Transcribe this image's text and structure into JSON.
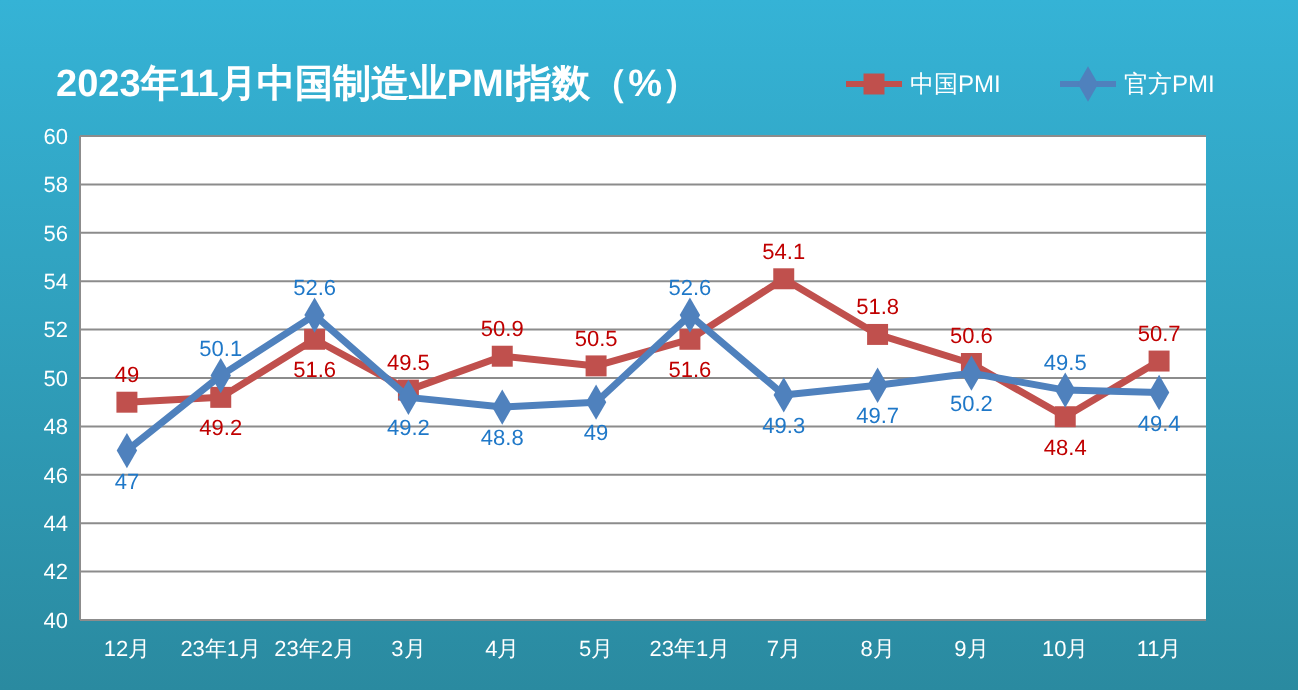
{
  "chart_data": {
    "type": "line",
    "title": "2023年11月中国制造业PMI指数（%）",
    "categories": [
      "12月",
      "23年1月",
      "23年2月",
      "3月",
      "4月",
      "5月",
      "23年1月",
      "7月",
      "8月",
      "9月",
      "10月",
      "11月"
    ],
    "series": [
      {
        "name": "中国PMI",
        "color": "#c0504d",
        "marker": "square",
        "values": [
          49,
          49.2,
          51.6,
          49.5,
          50.9,
          50.5,
          51.6,
          54.1,
          51.8,
          50.6,
          48.4,
          50.7
        ]
      },
      {
        "name": "官方PMI",
        "color": "#4f81bd",
        "marker": "diamond",
        "values": [
          47,
          50.1,
          52.6,
          49.2,
          48.8,
          49,
          52.6,
          49.3,
          49.7,
          50.2,
          49.5,
          49.4
        ]
      }
    ],
    "ylim": [
      40,
      60
    ],
    "yticks": [
      40,
      42,
      44,
      46,
      48,
      50,
      52,
      54,
      56,
      58,
      60
    ],
    "grid": "y",
    "legend": "top right",
    "data_labels": true,
    "line_style": "solid"
  }
}
